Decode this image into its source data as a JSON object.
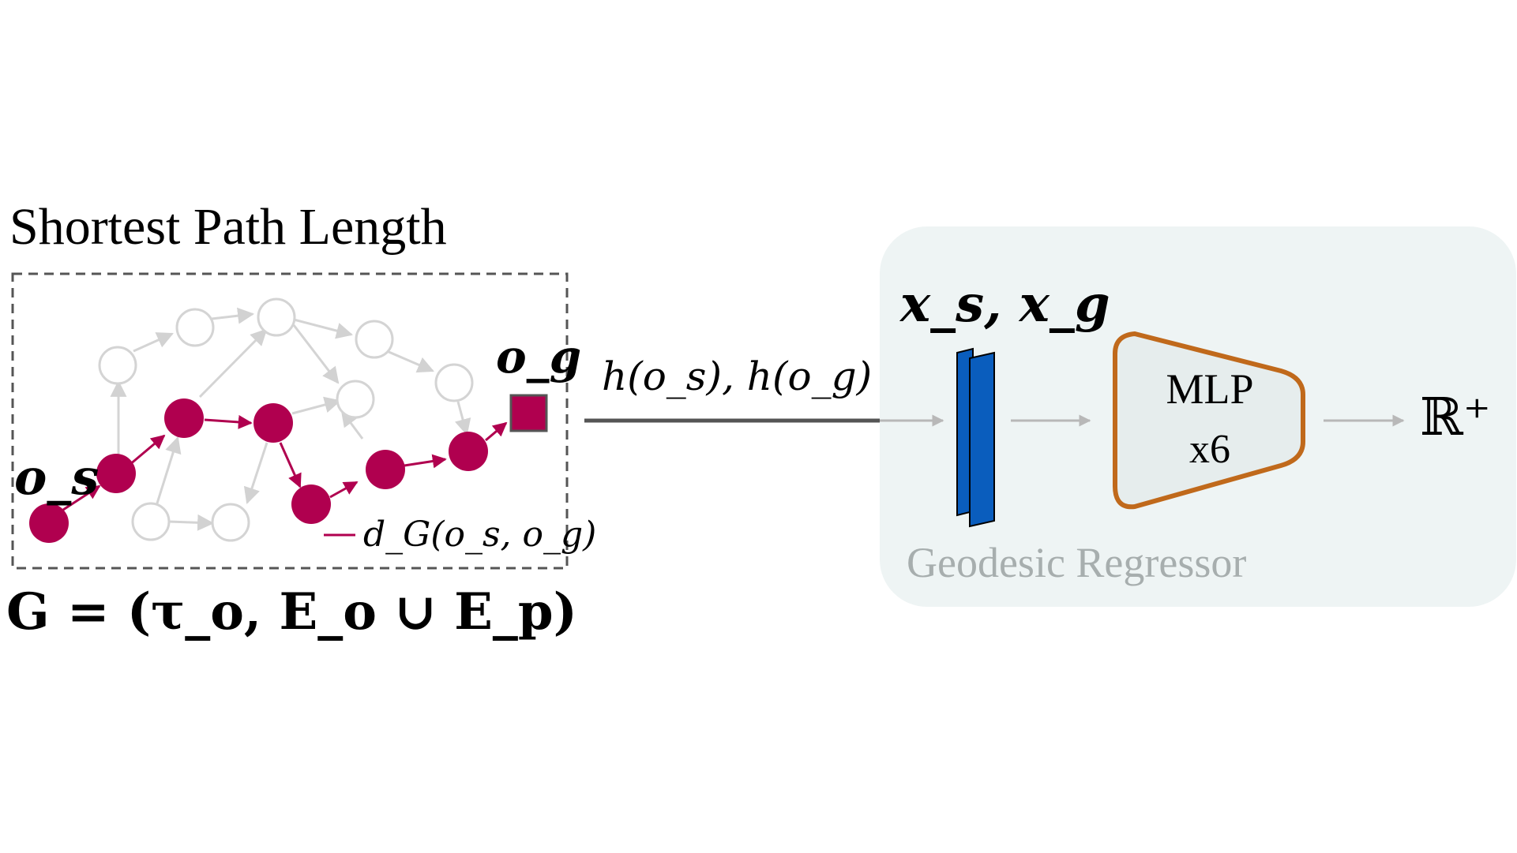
{
  "title": "Shortest Path Length",
  "labels": {
    "start_node": "o_s",
    "goal_node": "o_g",
    "path_distance": "d_G(o_s, o_g)",
    "graph_definition": "G = (τ_o, E_o ∪ E_p)",
    "embedding": "h(o_s), h(o_g)",
    "features": "x_s, x_g",
    "mlp_line1": "MLP",
    "mlp_line2": "x6",
    "output": "ℝ⁺",
    "regressor": "Geodesic Regressor"
  },
  "colors": {
    "path": "#b0004f",
    "inactive_node": "#d4d4d4",
    "frame": "#555555",
    "panel": "#eef4f4",
    "features_block": "#0a5dbd",
    "mlp_border": "#c0691b",
    "mlp_fill": "#e6eded",
    "regressor_text": "#a7aeae"
  },
  "graph": {
    "path_nodes": [
      "o_s",
      "p1",
      "p2",
      "p3",
      "p4",
      "p5",
      "p6",
      "o_g"
    ],
    "goal_shape": "square"
  }
}
